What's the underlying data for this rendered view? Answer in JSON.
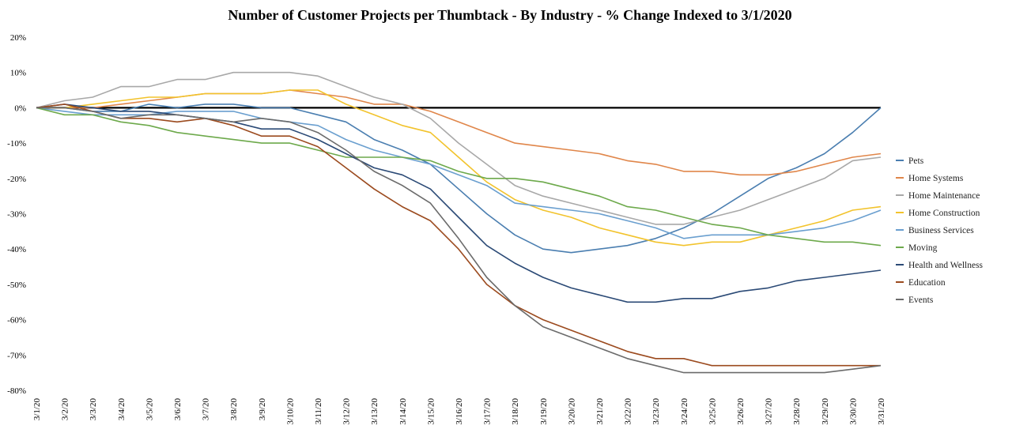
{
  "chart_data": {
    "type": "line",
    "title": "Number of Customer Projects per Thumbtack - By Industry - % Change Indexed to 3/1/2020",
    "xlabel": "",
    "ylabel": "",
    "ylim": [
      -80,
      20
    ],
    "y_ticks": [
      20,
      10,
      0,
      -10,
      -20,
      -30,
      -40,
      -50,
      -60,
      -70,
      -80
    ],
    "y_tick_labels": [
      "20%",
      "10%",
      "0%",
      "-10%",
      "-20%",
      "-30%",
      "-40%",
      "-50%",
      "-60%",
      "-70%",
      "-80%"
    ],
    "grid": false,
    "legend_position": "right",
    "x": [
      "3/1/20",
      "3/2/20",
      "3/3/20",
      "3/4/20",
      "3/5/20",
      "3/6/20",
      "3/7/20",
      "3/8/20",
      "3/9/20",
      "3/10/20",
      "3/11/20",
      "3/12/20",
      "3/13/20",
      "3/14/20",
      "3/15/20",
      "3/16/20",
      "3/17/20",
      "3/18/20",
      "3/19/20",
      "3/20/20",
      "3/21/20",
      "3/22/20",
      "3/23/20",
      "3/24/20",
      "3/25/20",
      "3/26/20",
      "3/27/20",
      "3/28/20",
      "3/29/20",
      "3/30/20",
      "3/31/20"
    ],
    "zero_line_color": "#000000",
    "series": [
      {
        "name": "Pets",
        "color": "#4a7eb0",
        "values": [
          0,
          0,
          -1,
          -1,
          1,
          0,
          1,
          1,
          0,
          0,
          -2,
          -4,
          -9,
          -12,
          -16,
          -23,
          -30,
          -36,
          -40,
          -41,
          -40,
          -39,
          -37,
          -34,
          -30,
          -25,
          -20,
          -17,
          -13,
          -7,
          0
        ]
      },
      {
        "name": "Home Systems",
        "color": "#e0864a",
        "values": [
          0,
          0,
          0,
          1,
          2,
          3,
          4,
          4,
          4,
          5,
          4,
          3,
          1,
          1,
          -1,
          -4,
          -7,
          -10,
          -11,
          -12,
          -13,
          -15,
          -16,
          -18,
          -18,
          -19,
          -19,
          -18,
          -16,
          -14,
          -13
        ]
      },
      {
        "name": "Home Maintenance",
        "color": "#a8a8a8",
        "values": [
          0,
          2,
          3,
          6,
          6,
          8,
          8,
          10,
          10,
          10,
          9,
          6,
          3,
          1,
          -3,
          -10,
          -16,
          -22,
          -25,
          -27,
          -29,
          -31,
          -33,
          -33,
          -31,
          -29,
          -26,
          -23,
          -20,
          -15,
          -14
        ]
      },
      {
        "name": "Home Construction",
        "color": "#f2c32c",
        "values": [
          0,
          0,
          1,
          2,
          3,
          3,
          4,
          4,
          4,
          5,
          5,
          1,
          -2,
          -5,
          -7,
          -14,
          -21,
          -26,
          -29,
          -31,
          -34,
          -36,
          -38,
          -39,
          -38,
          -38,
          -36,
          -34,
          -32,
          -29,
          -28
        ]
      },
      {
        "name": "Business Services",
        "color": "#6a9fcf",
        "values": [
          0,
          -1,
          -2,
          -2,
          -2,
          -1,
          -1,
          -1,
          -3,
          -4,
          -5,
          -9,
          -12,
          -14,
          -16,
          -19,
          -22,
          -27,
          -28,
          -29,
          -30,
          -32,
          -34,
          -37,
          -36,
          -36,
          -36,
          -35,
          -34,
          -32,
          -29
        ]
      },
      {
        "name": "Moving",
        "color": "#6da94b",
        "values": [
          0,
          -2,
          -2,
          -4,
          -5,
          -7,
          -8,
          -9,
          -10,
          -10,
          -12,
          -14,
          -14,
          -14,
          -15,
          -18,
          -20,
          -20,
          -21,
          -23,
          -25,
          -28,
          -29,
          -31,
          -33,
          -34,
          -36,
          -37,
          -38,
          -38,
          -39
        ]
      },
      {
        "name": "Health and Wellness",
        "color": "#2b4a76",
        "values": [
          0,
          1,
          0,
          -1,
          -1,
          -2,
          -3,
          -4,
          -6,
          -6,
          -9,
          -13,
          -17,
          -19,
          -23,
          -31,
          -39,
          -44,
          -48,
          -51,
          -53,
          -55,
          -55,
          -54,
          -54,
          -52,
          -51,
          -49,
          -48,
          -47,
          -46
        ]
      },
      {
        "name": "Education",
        "color": "#9b4a1e",
        "values": [
          0,
          1,
          -1,
          -3,
          -3,
          -4,
          -3,
          -5,
          -8,
          -8,
          -11,
          -17,
          -23,
          -28,
          -32,
          -40,
          -50,
          -56,
          -60,
          -63,
          -66,
          -69,
          -71,
          -71,
          -73,
          -73,
          -73,
          -73,
          -73,
          -73,
          -73
        ]
      },
      {
        "name": "Events",
        "color": "#6b6b6b",
        "values": [
          0,
          0,
          -1,
          -3,
          -2,
          -2,
          -3,
          -4,
          -3,
          -4,
          -7,
          -12,
          -18,
          -22,
          -27,
          -37,
          -48,
          -56,
          -62,
          -65,
          -68,
          -71,
          -73,
          -75,
          -75,
          -75,
          -75,
          -75,
          -75,
          -74,
          -73
        ]
      }
    ]
  }
}
